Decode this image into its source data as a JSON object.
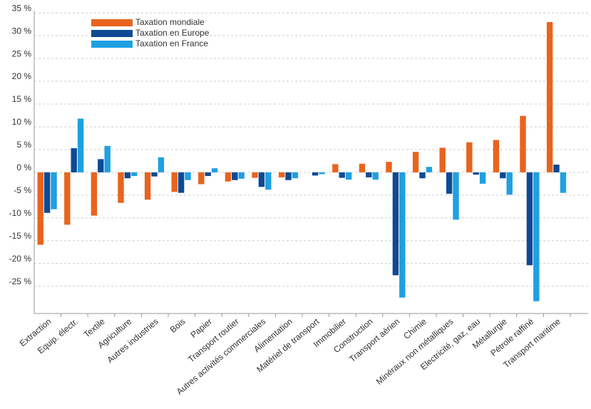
{
  "chart_data": {
    "type": "bar",
    "categories": [
      "Extraction",
      "Equip. électr.",
      "Textile",
      "Agriculture",
      "Autres industries",
      "Bois",
      "Papier",
      "Transport routier",
      "Autres activités commerciales",
      "Alimentation",
      "Matériel de transport",
      "Immobilier",
      "Construction",
      "Transport aérien",
      "Chimie",
      "Minéraux non métalliques",
      "Electricité, gaz, eau",
      "Métallurgie",
      "Pétrole raffiné",
      "Transport maritime"
    ],
    "series": [
      {
        "name": "Taxation mondiale",
        "color": "#e8641e",
        "values": [
          -15.9,
          -11.5,
          -9.5,
          -6.7,
          -6,
          -4.3,
          -2.6,
          -2,
          -1.2,
          -1.1,
          0,
          1.8,
          1.9,
          2.3,
          4.5,
          5.4,
          6.6,
          7.1,
          12.4,
          33
        ]
      },
      {
        "name": "Taxation en Europe",
        "color": "#0d4a94",
        "values": [
          -8.9,
          5.3,
          2.9,
          -1.3,
          -0.9,
          -4.5,
          -0.8,
          -1.7,
          -3.2,
          -1.7,
          -0.7,
          -1.2,
          -1.1,
          -22.6,
          -1.3,
          -4.7,
          -0.5,
          -1.3,
          -20.4,
          1.7
        ]
      },
      {
        "name": "Taxation en France",
        "color": "#1fa0e0",
        "values": [
          -8.1,
          11.8,
          5.8,
          -0.8,
          3.3,
          -1.7,
          0.9,
          -1.4,
          -3.8,
          -1.3,
          -0.4,
          -1.6,
          -1.6,
          -27.5,
          1.2,
          -10.4,
          -2.5,
          -4.9,
          -28.3,
          -4.5
        ]
      }
    ],
    "ylim": [
      -31,
      35.5
    ],
    "yticks": [
      {
        "value": 35,
        "label": "35 %"
      },
      {
        "value": 30,
        "label": "30 %"
      },
      {
        "value": 25,
        "label": "25 %"
      },
      {
        "value": 20,
        "label": "20 %"
      },
      {
        "value": 15,
        "label": "15 %"
      },
      {
        "value": 10,
        "label": "10 %"
      },
      {
        "value": 5,
        "label": "5 %"
      },
      {
        "value": 0,
        "label": "0 %"
      },
      {
        "value": -5,
        "label": "-5 %"
      },
      {
        "value": -10,
        "label": "-10 %"
      },
      {
        "value": -15,
        "label": "-15 %"
      },
      {
        "value": -20,
        "label": "-20 %"
      },
      {
        "value": -25,
        "label": "-25 %"
      }
    ],
    "grid": true
  }
}
